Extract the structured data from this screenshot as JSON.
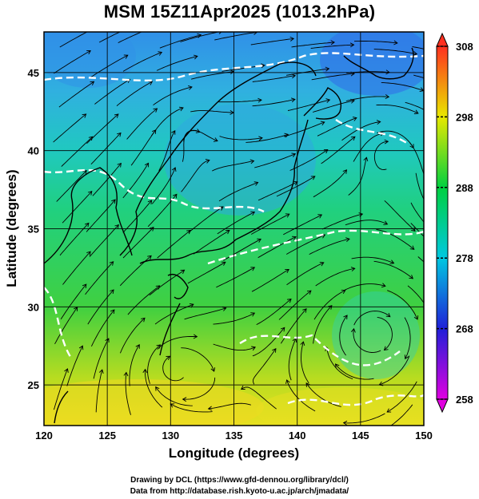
{
  "title": "MSM 15Z11Apr2025 (1013.2hPa)",
  "axes": {
    "xlabel": "Longitude (degrees)",
    "ylabel": "Latitude  (degrees)",
    "xticks": [
      "120",
      "125",
      "130",
      "135",
      "140",
      "145",
      "150"
    ],
    "yticks": [
      "25",
      "30",
      "35",
      "40",
      "45"
    ]
  },
  "colorbar": {
    "min": 258,
    "max": 308,
    "labels": [
      "308",
      "298",
      "288",
      "278",
      "268",
      "258"
    ],
    "colors": [
      "#d000d0",
      "#2020e0",
      "#00b8e8",
      "#00d050",
      "#e8e800",
      "#ff4020"
    ]
  },
  "credits": {
    "line1": "Drawing by DCL (https://www.gfd-dennou.org/library/dcl/)",
    "line2": "Data from http://database.rish.kyoto-u.ac.jp/arch/jmadata/"
  },
  "map_extent": {
    "lon": [
      120,
      150
    ],
    "lat": [
      22.4,
      47.6
    ]
  }
}
